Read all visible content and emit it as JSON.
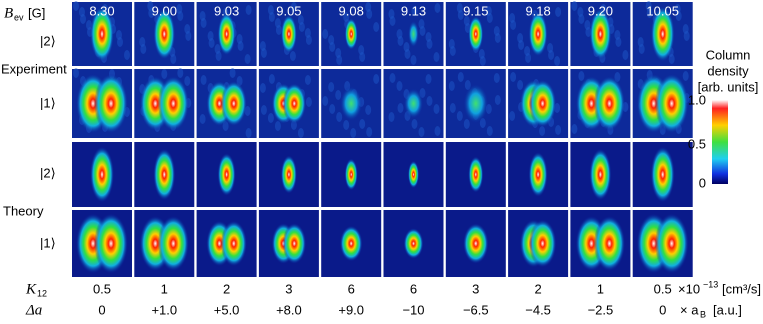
{
  "header": {
    "b_symbol": "B",
    "b_sub": "ev",
    "b_unit": "[G]"
  },
  "b_values": [
    "8.30",
    "9.00",
    "9.03",
    "9.05",
    "9.08",
    "9.13",
    "9.15",
    "9.18",
    "9.20",
    "10.05"
  ],
  "groups": [
    "Experiment",
    "Theory"
  ],
  "row_labels": [
    "|2⟩",
    "|1⟩",
    "|2⟩",
    "|1⟩"
  ],
  "k12": {
    "symbol": "K",
    "sub": "12",
    "values": [
      "0.5",
      "1",
      "2",
      "3",
      "6",
      "6",
      "3",
      "2",
      "1",
      "0.5"
    ],
    "unit_base": "×10",
    "unit_exp": "−13",
    "unit": "[cm³/s]"
  },
  "da": {
    "symbol": "Δa",
    "values": [
      "0",
      "+1.0",
      "+5.0",
      "+8.0",
      "+9.0",
      "−10",
      "−6.5",
      "−4.5",
      "−2.5",
      "0"
    ],
    "unit_symbol": "× a",
    "unit_sub": "B",
    "unit": "[a.u.]"
  },
  "colorbar": {
    "title_1": "Column",
    "title_2": "density",
    "unit": "[arb. units]",
    "ticks": [
      "1.0",
      "0.5",
      "0"
    ]
  }
}
